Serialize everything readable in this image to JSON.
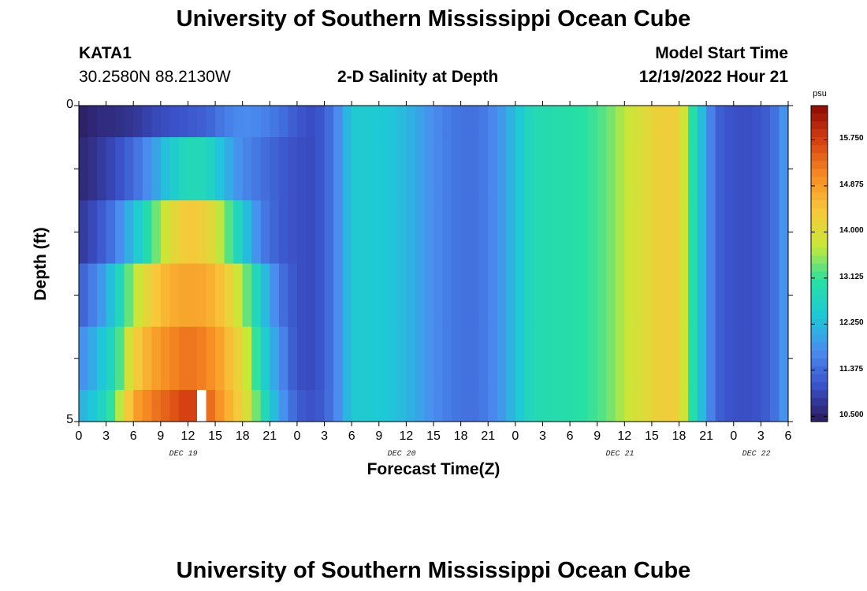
{
  "header": {
    "title": "University of Southern Mississippi Ocean Cube",
    "station_id": "KATA1",
    "station_coords": "30.2580N  88.2130W",
    "plot_title": "2-D Salinity at Depth",
    "model_start_label": "Model Start Time",
    "model_start_value": "12/19/2022 Hour 21"
  },
  "footer": {
    "title": "University of Southern Mississippi Ocean Cube"
  },
  "colors": {
    "background": "#ffffff",
    "missing": "#ffffff",
    "colormap": [
      "#2b1a5a",
      "#3a50c8",
      "#4a8cf0",
      "#1ec8d8",
      "#27e0a4",
      "#c8e838",
      "#f8c83a",
      "#f78c23",
      "#d64012",
      "#8a0a04"
    ]
  },
  "chart_data": {
    "type": "heatmap",
    "title": "2-D Salinity at Depth",
    "xlabel": "Forecast Time(Z)",
    "ylabel": "Depth (ft)",
    "x_hours_range": [
      0,
      78
    ],
    "y_range": [
      0,
      5
    ],
    "y_tick_labels": [
      "0",
      "5"
    ],
    "x_tick_labels": [
      "0",
      "3",
      "6",
      "9",
      "12",
      "15",
      "18",
      "21",
      "0",
      "3",
      "6",
      "9",
      "12",
      "15",
      "18",
      "21",
      "0",
      "3",
      "6",
      "9",
      "12",
      "15",
      "18",
      "21",
      "0",
      "3",
      "6"
    ],
    "date_labels": [
      {
        "text": "DEC 19",
        "hour": 11.5
      },
      {
        "text": "DEC 20",
        "hour": 35.5
      },
      {
        "text": "DEC 21",
        "hour": 59.5
      },
      {
        "text": "DEC 22",
        "hour": 74.5
      }
    ],
    "colorbar": {
      "unit": "psu",
      "vmin": 10.4,
      "vmax": 16.4,
      "tick_values": [
        15.75,
        14.875,
        14.0,
        13.125,
        12.25,
        11.375,
        10.5
      ],
      "tick_labels": [
        "15.750",
        "14.875",
        "14.000",
        "13.125",
        "12.250",
        "11.375",
        "10.500"
      ]
    },
    "missing_cells": [
      {
        "layer": 5,
        "hour": 13
      }
    ],
    "layer_boundaries": [
      0,
      0.5,
      1.5,
      2.5,
      3.5,
      4.5,
      5
    ],
    "hourly_columns": 78,
    "upper_anchor_hours": [
      0,
      2,
      4,
      6,
      8,
      10,
      12,
      14,
      16,
      18,
      20,
      22,
      24,
      26,
      28,
      30,
      32,
      34,
      36,
      38,
      40,
      42,
      44,
      46,
      48,
      50,
      52,
      54,
      56,
      58,
      60,
      62,
      64,
      66,
      68,
      70,
      72,
      74,
      76,
      78
    ],
    "layers": [
      {
        "name": "layer-0",
        "anchors": [
          10.45,
          10.6,
          10.65,
          10.75,
          10.95,
          11.05,
          11.15,
          11.25,
          11.55,
          11.75,
          11.65,
          11.45,
          11.15,
          11.0,
          11.5,
          12.45,
          12.5,
          12.4,
          12.2,
          11.9,
          11.6,
          11.45,
          11.45,
          11.75,
          12.3,
          12.9,
          12.95,
          13.0,
          13.1,
          13.3,
          13.7,
          14.0,
          14.3,
          14.25,
          12.6,
          11.3,
          11.05,
          11.05,
          11.25,
          12.0
        ]
      },
      {
        "name": "layer-1",
        "anchors": [
          10.55,
          10.75,
          11.0,
          11.35,
          11.85,
          12.45,
          12.85,
          12.8,
          12.2,
          11.7,
          11.45,
          11.2,
          11.05,
          11.0,
          11.5,
          12.45,
          12.5,
          12.4,
          12.2,
          11.9,
          11.6,
          11.45,
          11.45,
          11.75,
          12.3,
          12.9,
          12.95,
          13.0,
          13.1,
          13.3,
          13.7,
          14.0,
          14.3,
          14.25,
          12.6,
          11.3,
          11.05,
          11.05,
          11.25,
          12.0
        ]
      },
      {
        "name": "layer-2",
        "anchors": [
          10.75,
          11.05,
          11.55,
          12.3,
          13.15,
          14.0,
          14.4,
          14.25,
          13.5,
          12.5,
          11.6,
          11.2,
          11.05,
          11.0,
          11.5,
          12.45,
          12.5,
          12.4,
          12.2,
          11.9,
          11.6,
          11.45,
          11.45,
          11.75,
          12.3,
          12.9,
          12.95,
          13.0,
          13.1,
          13.3,
          13.7,
          14.0,
          14.3,
          14.25,
          12.6,
          11.3,
          11.05,
          11.05,
          11.25,
          12.0
        ]
      },
      {
        "name": "layer-3",
        "anchors": [
          11.2,
          11.7,
          12.5,
          13.6,
          14.3,
          14.7,
          14.8,
          14.75,
          14.4,
          13.6,
          12.5,
          11.5,
          11.05,
          11.0,
          11.5,
          12.45,
          12.5,
          12.4,
          12.2,
          11.9,
          11.6,
          11.45,
          11.45,
          11.75,
          12.3,
          12.9,
          12.95,
          13.0,
          13.1,
          13.3,
          13.7,
          14.0,
          14.3,
          14.25,
          12.6,
          11.3,
          11.05,
          11.05,
          11.25,
          12.0
        ]
      },
      {
        "name": "layer-4",
        "anchors": [
          11.7,
          12.2,
          12.9,
          14.2,
          14.8,
          15.1,
          15.3,
          15.15,
          14.7,
          14.05,
          12.8,
          11.8,
          11.05,
          11.0,
          11.5,
          12.45,
          12.5,
          12.4,
          12.2,
          11.9,
          11.6,
          11.45,
          11.45,
          11.75,
          12.3,
          12.9,
          12.95,
          13.0,
          13.1,
          13.3,
          13.7,
          14.0,
          14.3,
          14.25,
          12.6,
          11.3,
          11.05,
          11.05,
          11.25,
          12.0
        ]
      },
      {
        "name": "layer-5",
        "anchors": [
          12.1,
          12.5,
          13.3,
          14.8,
          15.2,
          15.5,
          15.8,
          15.5,
          14.8,
          14.2,
          13.1,
          12.0,
          11.2,
          11.05,
          11.5,
          12.45,
          12.5,
          12.4,
          12.2,
          11.9,
          11.6,
          11.45,
          11.45,
          11.75,
          12.3,
          12.9,
          12.95,
          13.0,
          13.1,
          13.3,
          13.7,
          14.0,
          14.3,
          14.25,
          12.6,
          11.3,
          11.05,
          11.05,
          11.25,
          12.0
        ]
      }
    ]
  }
}
